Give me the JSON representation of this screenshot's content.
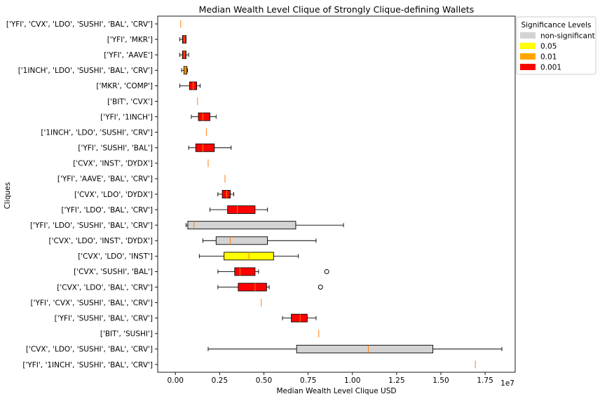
{
  "chart_data": {
    "type": "boxplot",
    "orientation": "horizontal",
    "title": "Median Wealth Level Clique of Strongly Clique-defining Wallets",
    "xlabel": "Median Wealth Level Clique USD",
    "ylabel": "Cliques",
    "x_offset_label": "1e7",
    "xlim": [
      -1000000,
      19200000
    ],
    "x_ticks": [
      {
        "value": 0,
        "label": "0.00"
      },
      {
        "value": 2500000,
        "label": "0.25"
      },
      {
        "value": 5000000,
        "label": "0.50"
      },
      {
        "value": 7500000,
        "label": "0.75"
      },
      {
        "value": 10000000,
        "label": "1.00"
      },
      {
        "value": 12500000,
        "label": "1.25"
      },
      {
        "value": 15000000,
        "label": "1.50"
      },
      {
        "value": 17500000,
        "label": "1.75"
      }
    ],
    "legend": {
      "title": "Significance Levels",
      "position": "upper-right-outside",
      "entries": [
        {
          "label": "non-significant",
          "color": "#d3d3d3"
        },
        {
          "label": "0.05",
          "color": "#ffff00"
        },
        {
          "label": "0.01",
          "color": "#ffa500"
        },
        {
          "label": "0.001",
          "color": "#ff0000"
        }
      ]
    },
    "median_color": "#ff7f0e",
    "cliques": [
      {
        "label": "['YFI', 'CVX', 'LDO', 'SUSHI', 'BAL', 'CRV']",
        "whislo": 300000,
        "q1": 300000,
        "median": 300000,
        "q3": 300000,
        "whishi": 300000,
        "fliers": [],
        "significance": "0.001"
      },
      {
        "label": "['YFI', 'MKR']",
        "whislo": 250000,
        "q1": 400000,
        "median": 500000,
        "q3": 600000,
        "whishi": 600000,
        "fliers": [],
        "significance": "0.001"
      },
      {
        "label": "['YFI', 'AAVE']",
        "whislo": 250000,
        "q1": 400000,
        "median": 500000,
        "q3": 600000,
        "whishi": 750000,
        "fliers": [],
        "significance": "0.001"
      },
      {
        "label": "['1INCH', 'LDO', 'SUSHI', 'BAL', 'CRV']",
        "whislo": 350000,
        "q1": 480000,
        "median": 550000,
        "q3": 650000,
        "whishi": 680000,
        "fliers": [],
        "significance": "0.01"
      },
      {
        "label": "['MKR', 'COMP']",
        "whislo": 250000,
        "q1": 800000,
        "median": 1000000,
        "q3": 1200000,
        "whishi": 1400000,
        "fliers": [],
        "significance": "0.001"
      },
      {
        "label": "['BIT', 'CVX']",
        "whislo": 1250000,
        "q1": 1250000,
        "median": 1250000,
        "q3": 1250000,
        "whishi": 1250000,
        "fliers": [],
        "significance": "non-significant"
      },
      {
        "label": "['YFI', '1INCH']",
        "whislo": 900000,
        "q1": 1300000,
        "median": 1550000,
        "q3": 1950000,
        "whishi": 2300000,
        "fliers": [],
        "significance": "0.001"
      },
      {
        "label": "['1INCH', 'LDO', 'SUSHI', 'CRV']",
        "whislo": 1750000,
        "q1": 1750000,
        "median": 1750000,
        "q3": 1750000,
        "whishi": 1750000,
        "fliers": [],
        "significance": "non-significant"
      },
      {
        "label": "['YFI', 'SUSHI', 'BAL']",
        "whislo": 750000,
        "q1": 1150000,
        "median": 1550000,
        "q3": 2200000,
        "whishi": 3150000,
        "fliers": [],
        "significance": "0.001"
      },
      {
        "label": "['CVX', 'INST', 'DYDX']",
        "whislo": 1850000,
        "q1": 1850000,
        "median": 1850000,
        "q3": 1850000,
        "whishi": 1850000,
        "fliers": [],
        "significance": "non-significant"
      },
      {
        "label": "['YFI', 'AAVE', 'BAL', 'CRV']",
        "whislo": 2800000,
        "q1": 2800000,
        "median": 2800000,
        "q3": 2800000,
        "whishi": 2800000,
        "fliers": [],
        "significance": "non-significant"
      },
      {
        "label": "['CVX', 'LDO', 'DYDX']",
        "whislo": 2400000,
        "q1": 2650000,
        "median": 2900000,
        "q3": 3100000,
        "whishi": 3300000,
        "fliers": [],
        "significance": "0.001"
      },
      {
        "label": "['YFI', 'LDO', 'BAL', 'CRV']",
        "whislo": 1950000,
        "q1": 2950000,
        "median": 3500000,
        "q3": 4500000,
        "whishi": 5200000,
        "fliers": [],
        "significance": "0.001"
      },
      {
        "label": "['YFI', 'LDO', 'SUSHI', 'BAL', 'CRV']",
        "whislo": 600000,
        "q1": 700000,
        "median": 1050000,
        "q3": 6800000,
        "whishi": 9500000,
        "fliers": [],
        "significance": "non-significant"
      },
      {
        "label": "['CVX', 'LDO', 'INST', 'DYDX']",
        "whislo": 1550000,
        "q1": 2300000,
        "median": 3100000,
        "q3": 5200000,
        "whishi": 7950000,
        "fliers": [],
        "significance": "non-significant"
      },
      {
        "label": "['CVX', 'LDO', 'INST']",
        "whislo": 1350000,
        "q1": 2750000,
        "median": 4150000,
        "q3": 5550000,
        "whishi": 6950000,
        "fliers": [],
        "significance": "0.05"
      },
      {
        "label": "['CVX', 'SUSHI', 'BAL']",
        "whislo": 2400000,
        "q1": 3350000,
        "median": 3650000,
        "q3": 4500000,
        "whishi": 4700000,
        "fliers": [
          8550000
        ],
        "significance": "0.001"
      },
      {
        "label": "['CVX', 'LDO', 'BAL', 'CRV']",
        "whislo": 2400000,
        "q1": 3550000,
        "median": 4500000,
        "q3": 5150000,
        "whishi": 5300000,
        "fliers": [
          8200000
        ],
        "significance": "0.001"
      },
      {
        "label": "['YFI', 'CVX', 'SUSHI', 'BAL', 'CRV']",
        "whislo": 4850000,
        "q1": 4850000,
        "median": 4850000,
        "q3": 4850000,
        "whishi": 4850000,
        "fliers": [],
        "significance": "non-significant"
      },
      {
        "label": "['YFI', 'SUSHI', 'BAL', 'CRV']",
        "whislo": 6050000,
        "q1": 6550000,
        "median": 7050000,
        "q3": 7450000,
        "whishi": 7950000,
        "fliers": [],
        "significance": "0.001"
      },
      {
        "label": "['BIT', 'SUSHI']",
        "whislo": 8100000,
        "q1": 8100000,
        "median": 8100000,
        "q3": 8100000,
        "whishi": 8100000,
        "fliers": [],
        "significance": "non-significant"
      },
      {
        "label": "['CVX', 'LDO', 'SUSHI', 'BAL', 'CRV']",
        "whislo": 1850000,
        "q1": 6850000,
        "median": 10900000,
        "q3": 14550000,
        "whishi": 18450000,
        "fliers": [],
        "significance": "non-significant"
      },
      {
        "label": "['YFI', '1INCH', 'SUSHI', 'BAL', 'CRV']",
        "whislo": 16950000,
        "q1": 16950000,
        "median": 16950000,
        "q3": 16950000,
        "whishi": 16950000,
        "fliers": [],
        "significance": "non-significant"
      }
    ]
  }
}
